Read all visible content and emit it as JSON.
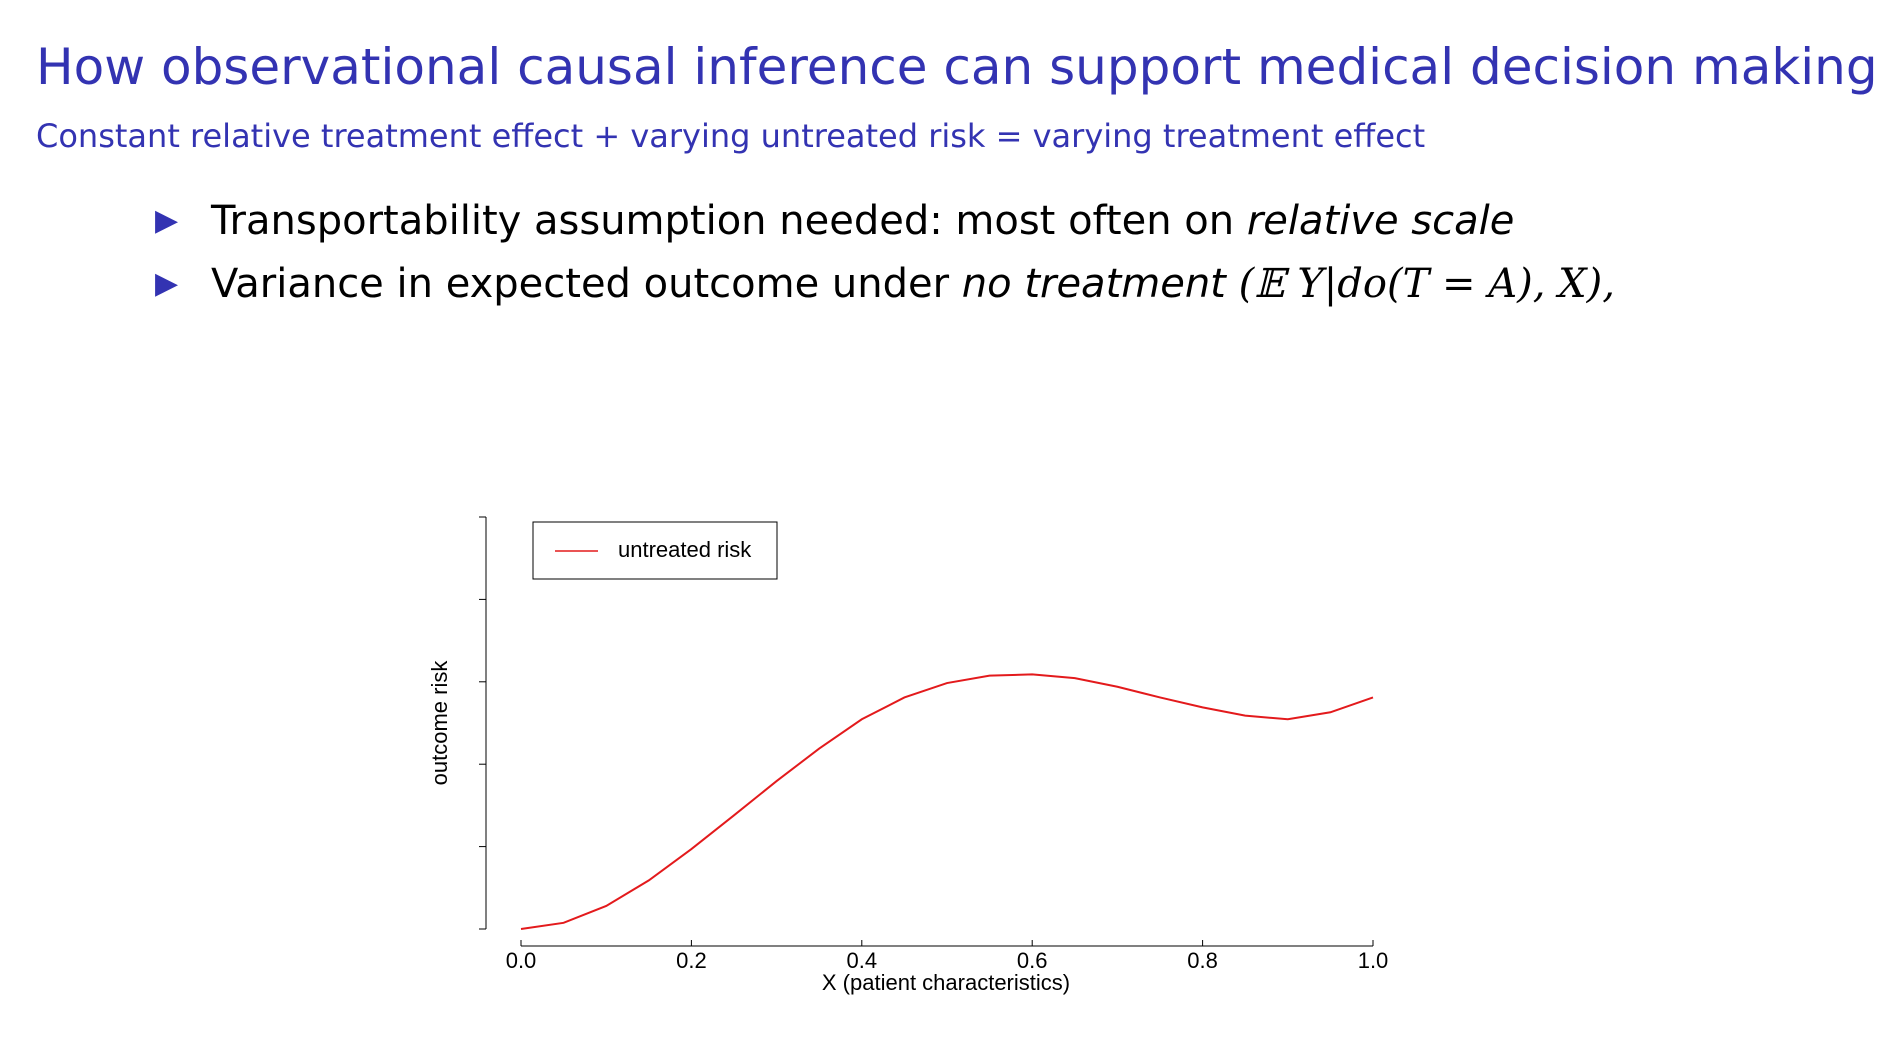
{
  "header": {
    "title": "How observational causal inference can support medical decision making",
    "subtitle": "Constant relative treatment effect + varying untreated risk = varying treatment effect"
  },
  "bullets": [
    {
      "text": "Transportability assumption needed: most often on ",
      "emphasis": "relative scale"
    },
    {
      "text": "Variance in expected outcome under ",
      "emphasis": "no treatment",
      "math": "(𝔼 Y|do(T = A), X),"
    }
  ],
  "chart_data": {
    "type": "line",
    "xlabel": "X (patient characteristics)",
    "ylabel": "outcome risk",
    "x": [
      0,
      0.05,
      0.1,
      0.15,
      0.2,
      0.25,
      0.3,
      0.35,
      0.4,
      0.45,
      0.5,
      0.55,
      0.6,
      0.65,
      0.7,
      0.75,
      0.8,
      0.85,
      0.9,
      0.95,
      1.0
    ],
    "series": [
      {
        "name": "untreated risk",
        "color": "#e31a1c",
        "values": [
          0,
          0.015,
          0.056,
          0.118,
          0.194,
          0.276,
          0.359,
          0.438,
          0.509,
          0.562,
          0.597,
          0.615,
          0.618,
          0.609,
          0.588,
          0.562,
          0.538,
          0.518,
          0.509,
          0.526,
          0.562
        ]
      }
    ],
    "xlim": [
      0,
      1.0
    ],
    "xticks": [
      {
        "value": 0,
        "label": "0.0"
      },
      0.2,
      0.4,
      0.6,
      0.8,
      {
        "value": 1.0,
        "label": "1.0"
      }
    ],
    "ylim": [
      0,
      1
    ],
    "yticks": [
      0,
      0.2,
      0.4,
      0.6,
      0.8,
      1
    ],
    "legend": "top-left"
  }
}
